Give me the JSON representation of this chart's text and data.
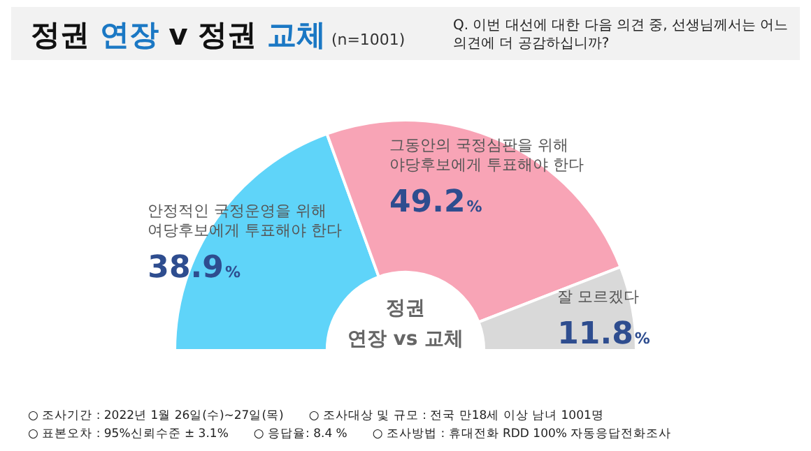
{
  "chart_data": {
    "type": "donut",
    "title": "정권 연장 v 정권 교체",
    "subtitle": "(n=1001)",
    "categories": [
      "안정적인 국정운영을 위해 여당후보에게 투표해야 한다",
      "그동안의 국정심판을 위해 야당후보에게 투표해야 한다",
      "잘 모르겠다"
    ],
    "values": [
      38.9,
      49.2,
      11.8
    ],
    "colors": [
      "#5fd4f9",
      "#f8a4b6",
      "#d9d9d9"
    ],
    "value_labels": [
      "38.9%",
      "49.2%",
      "11.8%"
    ],
    "legend": false,
    "annotations": [
      "Q. 이번 대선에 대한 다음 의견 중, 선생님께서는 어느 의견에 더 공감하십니까?",
      "정권 연장 vs 교체",
      "○ 조사기간 : 2022년 1월 26일(수)~27일(목)",
      "○ 조사대상 및 규모 : 전국 만18세 이상 남녀 1001명",
      "○ 표본오차 : 95%신뢰수준 ± 3.1%",
      "○ 응답율: 8.4 %",
      "○ 조사방법 : 휴대전화 RDD 100% 자동응답전화조사"
    ]
  }
}
